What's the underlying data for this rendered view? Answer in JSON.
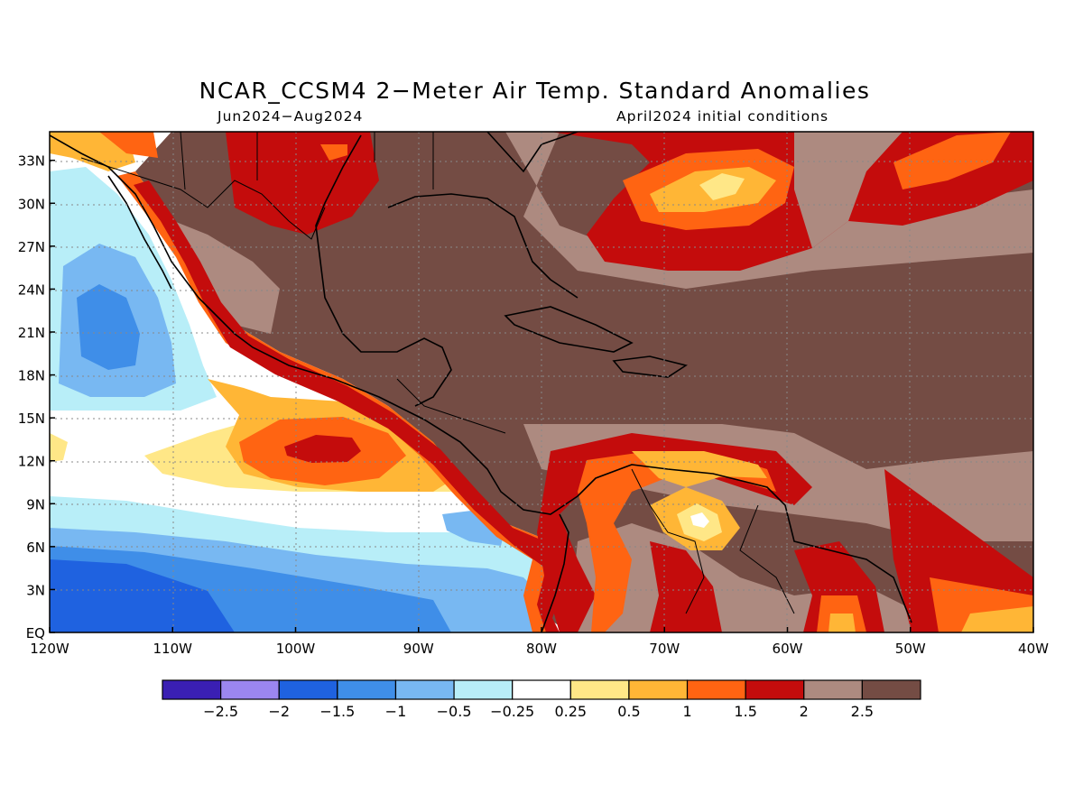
{
  "title": "NCAR_CCSM4 2−Meter Air Temp. Standard Anomalies",
  "subtitle_left": "Jun2024−Aug2024",
  "subtitle_right": "April2024 initial conditions",
  "lat_labels": [
    "EQ",
    "3N",
    "6N",
    "9N",
    "12N",
    "15N",
    "18N",
    "21N",
    "24N",
    "27N",
    "30N",
    "33N"
  ],
  "lon_labels": [
    "120W",
    "110W",
    "100W",
    "90W",
    "80W",
    "70W",
    "60W",
    "50W",
    "40W"
  ],
  "colorbar": {
    "colors": [
      "#3a1fb3",
      "#9b86f0",
      "#1f62e0",
      "#3f8ee8",
      "#78b8f2",
      "#b8eef8",
      "#ffffff",
      "#ffe787",
      "#ffb636",
      "#ff6412",
      "#c40c0c",
      "#ad8a80",
      "#744c44"
    ],
    "labels": [
      "−2.5",
      "−2",
      "−1.5",
      "−1",
      "−0.5",
      "−0.25",
      "0.25",
      "0.5",
      "1",
      "1.5",
      "2",
      "2.5"
    ]
  }
}
